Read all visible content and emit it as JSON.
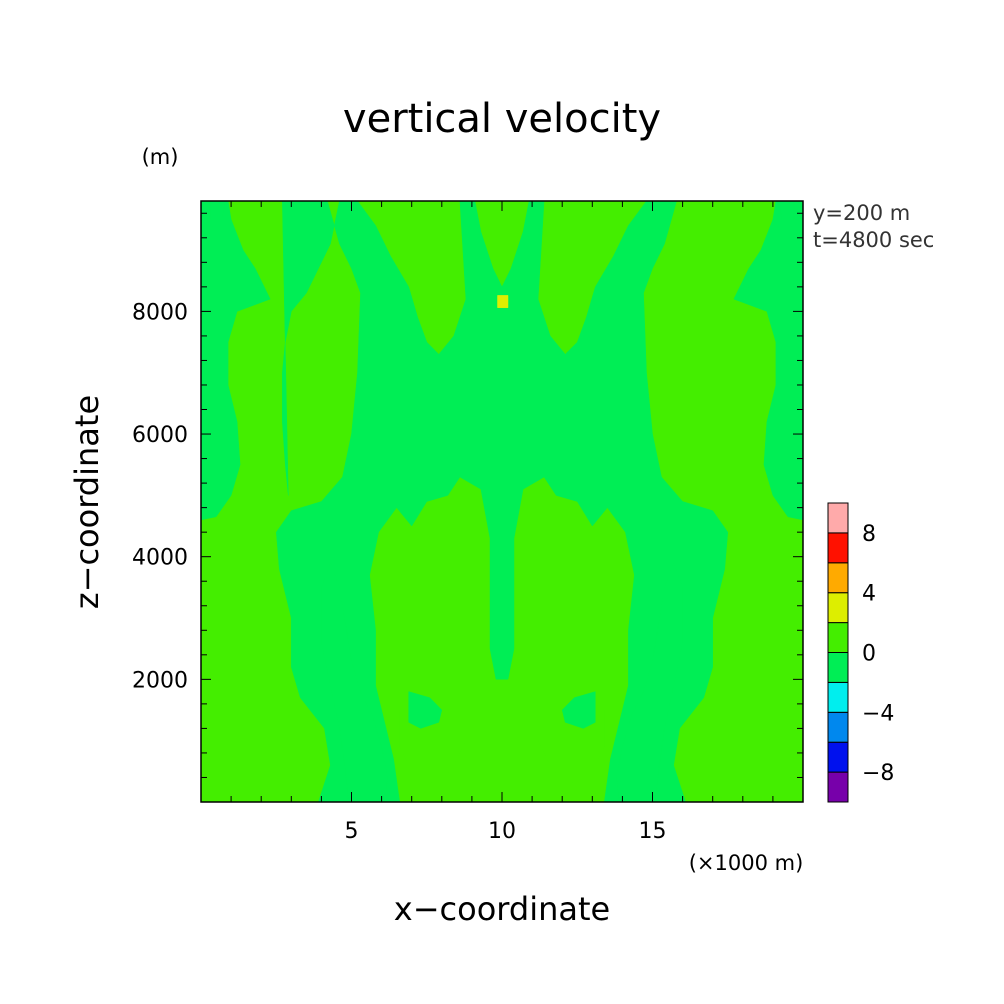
{
  "chart_data": {
    "type": "heatmap",
    "title": "vertical velocity",
    "xlabel": "x−coordinate",
    "ylabel": "z−coordinate",
    "x_unit": "(×1000 m)",
    "y_unit": "(m)",
    "xlim": [
      0,
      20
    ],
    "ylim": [
      0,
      9800
    ],
    "x_ticks": [
      5,
      10,
      15
    ],
    "x_tick_labels": [
      "5",
      "10",
      "15"
    ],
    "y_ticks": [
      2000,
      4000,
      6000,
      8000
    ],
    "y_tick_labels": [
      "2000",
      "4000",
      "6000",
      "8000"
    ],
    "annotations": [
      "y=200 m",
      "t=4800 sec"
    ],
    "colorbar": {
      "levels": [
        -10,
        -8,
        -6,
        -4,
        -2,
        0,
        2,
        4,
        6,
        8,
        10
      ],
      "colors": [
        "#7700aa",
        "#0011ee",
        "#0088ee",
        "#00eeee",
        "#00ee55",
        "#44ee00",
        "#ddee00",
        "#ffaa00",
        "#ff1100",
        "#ffaaaa"
      ],
      "tick_values": [
        -8,
        -4,
        0,
        4,
        8
      ],
      "tick_labels": [
        "−8",
        "−4",
        "0",
        "4",
        "8"
      ]
    },
    "regions": [
      {
        "level": "0 to 2",
        "color": "#44ee00",
        "polygon": [
          [
            0,
            0
          ],
          [
            20,
            0
          ],
          [
            20,
            9800
          ],
          [
            0,
            9800
          ]
        ]
      },
      {
        "level": "-2 to 0",
        "color": "#00ee55",
        "polygon": [
          [
            0,
            9800
          ],
          [
            0.9,
            9800
          ],
          [
            1.0,
            9500
          ],
          [
            1.4,
            9000
          ],
          [
            1.8,
            8700
          ],
          [
            2.3,
            8200
          ],
          [
            1.2,
            8000
          ],
          [
            0.9,
            7500
          ],
          [
            0.9,
            6800
          ],
          [
            1.2,
            6200
          ],
          [
            1.3,
            5500
          ],
          [
            1.0,
            5000
          ],
          [
            0.5,
            4650
          ],
          [
            0,
            4600
          ]
        ]
      },
      {
        "level": "-2 to 0",
        "color": "#00ee55",
        "polygon": [
          [
            20,
            9800
          ],
          [
            19.1,
            9800
          ],
          [
            19.0,
            9500
          ],
          [
            18.6,
            9000
          ],
          [
            18.2,
            8700
          ],
          [
            17.7,
            8200
          ],
          [
            18.8,
            8000
          ],
          [
            19.1,
            7500
          ],
          [
            19.1,
            6800
          ],
          [
            18.8,
            6200
          ],
          [
            18.7,
            5500
          ],
          [
            19.0,
            5000
          ],
          [
            19.5,
            4650
          ],
          [
            20,
            4600
          ]
        ]
      },
      {
        "level": "-2 to 0",
        "color": "#00ee55",
        "polygon": [
          [
            0.3,
            9800
          ],
          [
            0.8,
            9800
          ],
          [
            0.7,
            9500
          ],
          [
            0.4,
            9350
          ],
          [
            0.3,
            9500
          ]
        ]
      },
      {
        "level": "-2 to 0",
        "color": "#00ee55",
        "polygon": [
          [
            19.7,
            9800
          ],
          [
            19.2,
            9800
          ],
          [
            19.3,
            9500
          ],
          [
            19.6,
            9350
          ],
          [
            19.7,
            9500
          ]
        ]
      },
      {
        "level": "-2 to 0",
        "color": "#00ee55",
        "polygon": [
          [
            2.7,
            9800
          ],
          [
            4.2,
            9800
          ],
          [
            4.6,
            9100
          ],
          [
            5.0,
            8700
          ],
          [
            5.3,
            8300
          ],
          [
            5.2,
            7000
          ],
          [
            5.0,
            6000
          ],
          [
            4.7,
            5300
          ],
          [
            4.0,
            4900
          ],
          [
            3.0,
            4750
          ],
          [
            2.5,
            4400
          ],
          [
            2.6,
            3800
          ],
          [
            3.0,
            3000
          ],
          [
            3.0,
            2200
          ],
          [
            3.3,
            1700
          ],
          [
            4.1,
            1200
          ],
          [
            4.3,
            600
          ],
          [
            3.9,
            0
          ],
          [
            6.6,
            0
          ],
          [
            6.4,
            700
          ],
          [
            6.1,
            1300
          ],
          [
            5.8,
            1900
          ],
          [
            5.8,
            2800
          ],
          [
            5.6,
            3700
          ],
          [
            5.9,
            4400
          ],
          [
            6.5,
            4800
          ],
          [
            7.0,
            4500
          ],
          [
            7.5,
            4900
          ],
          [
            8.2,
            5000
          ],
          [
            8.6,
            5300
          ],
          [
            9.3,
            5100
          ],
          [
            9.6,
            4300
          ],
          [
            9.6,
            3300
          ],
          [
            9.6,
            2500
          ],
          [
            9.8,
            2000
          ],
          [
            10.2,
            2000
          ],
          [
            10.4,
            2500
          ],
          [
            10.4,
            3300
          ],
          [
            10.4,
            4300
          ],
          [
            10.7,
            5100
          ],
          [
            11.4,
            5300
          ],
          [
            11.8,
            5000
          ],
          [
            12.5,
            4900
          ],
          [
            13.0,
            4500
          ],
          [
            13.5,
            4800
          ],
          [
            14.1,
            4400
          ],
          [
            14.4,
            3700
          ],
          [
            14.2,
            2800
          ],
          [
            14.2,
            1900
          ],
          [
            13.9,
            1300
          ],
          [
            13.6,
            700
          ],
          [
            13.4,
            0
          ],
          [
            16.1,
            0
          ],
          [
            15.7,
            600
          ],
          [
            15.9,
            1200
          ],
          [
            16.7,
            1700
          ],
          [
            17.0,
            2200
          ],
          [
            17.0,
            3000
          ],
          [
            17.4,
            3800
          ],
          [
            17.5,
            4400
          ],
          [
            17.0,
            4750
          ],
          [
            16.0,
            4900
          ],
          [
            15.3,
            5300
          ],
          [
            15.0,
            6000
          ],
          [
            14.8,
            7000
          ],
          [
            14.7,
            8300
          ],
          [
            15.0,
            8700
          ],
          [
            15.4,
            9100
          ],
          [
            15.8,
            9800
          ],
          [
            14.8,
            9800
          ],
          [
            14.2,
            9400
          ],
          [
            13.7,
            8900
          ],
          [
            13.1,
            8400
          ],
          [
            12.8,
            7900
          ],
          [
            12.5,
            7500
          ],
          [
            12.1,
            7300
          ],
          [
            11.6,
            7600
          ],
          [
            11.2,
            8200
          ],
          [
            11.3,
            9000
          ],
          [
            11.4,
            9800
          ],
          [
            10.9,
            9800
          ],
          [
            10.7,
            9300
          ],
          [
            10.3,
            8700
          ],
          [
            10.0,
            8400
          ],
          [
            9.7,
            8700
          ],
          [
            9.3,
            9300
          ],
          [
            9.1,
            9800
          ],
          [
            8.6,
            9800
          ],
          [
            8.7,
            9000
          ],
          [
            8.8,
            8200
          ],
          [
            8.4,
            7600
          ],
          [
            7.9,
            7300
          ],
          [
            7.5,
            7500
          ],
          [
            7.2,
            7900
          ],
          [
            6.9,
            8400
          ],
          [
            6.3,
            8900
          ],
          [
            5.8,
            9400
          ],
          [
            5.2,
            9800
          ],
          [
            4.6,
            9800
          ],
          [
            4.3,
            9100
          ],
          [
            3.9,
            8700
          ],
          [
            3.5,
            8300
          ],
          [
            3.0,
            8000
          ],
          [
            2.8,
            7500
          ],
          [
            2.7,
            7000
          ],
          [
            2.7,
            6200
          ],
          [
            2.8,
            5500
          ],
          [
            2.9,
            5000
          ]
        ]
      },
      {
        "level": "-2 to 0",
        "color": "#00ee55",
        "polygon": [
          [
            4.9,
            0
          ],
          [
            6.1,
            0
          ],
          [
            6.2,
            400
          ],
          [
            6.0,
            900
          ],
          [
            5.7,
            1400
          ],
          [
            5.3,
            1800
          ],
          [
            5.0,
            2300
          ],
          [
            4.8,
            2900
          ],
          [
            4.6,
            3500
          ],
          [
            4.3,
            3900
          ],
          [
            4.0,
            3500
          ],
          [
            4.0,
            2600
          ],
          [
            4.3,
            1900
          ],
          [
            4.6,
            1200
          ],
          [
            4.8,
            500
          ]
        ]
      },
      {
        "level": "-2 to 0",
        "color": "#00ee55",
        "polygon": [
          [
            15.1,
            0
          ],
          [
            13.9,
            0
          ],
          [
            13.8,
            400
          ],
          [
            14.0,
            900
          ],
          [
            14.3,
            1400
          ],
          [
            14.7,
            1800
          ],
          [
            15.0,
            2300
          ],
          [
            15.2,
            2900
          ],
          [
            15.4,
            3500
          ],
          [
            15.7,
            3900
          ],
          [
            16.0,
            3500
          ],
          [
            16.0,
            2600
          ],
          [
            15.7,
            1900
          ],
          [
            15.4,
            1200
          ],
          [
            15.2,
            500
          ]
        ]
      },
      {
        "level": "0 to 2",
        "color": "#44ee00",
        "polygon": [
          [
            6.9,
            2100
          ],
          [
            7.3,
            2100
          ],
          [
            7.9,
            2000
          ],
          [
            8.6,
            1500
          ],
          [
            8.8,
            1000
          ],
          [
            8.3,
            500
          ],
          [
            7.6,
            300
          ],
          [
            7.0,
            500
          ],
          [
            6.6,
            900
          ],
          [
            6.6,
            1500
          ]
        ]
      },
      {
        "level": "0 to 2",
        "color": "#44ee00",
        "polygon": [
          [
            13.1,
            2100
          ],
          [
            12.7,
            2100
          ],
          [
            12.1,
            2000
          ],
          [
            11.4,
            1500
          ],
          [
            11.2,
            1000
          ],
          [
            11.7,
            500
          ],
          [
            12.4,
            300
          ],
          [
            13.0,
            500
          ],
          [
            13.4,
            900
          ],
          [
            13.4,
            1500
          ]
        ]
      },
      {
        "level": "-2 to 0",
        "color": "#00ee55",
        "polygon": [
          [
            6.9,
            1800
          ],
          [
            7.6,
            1700
          ],
          [
            8.0,
            1500
          ],
          [
            7.9,
            1300
          ],
          [
            7.3,
            1200
          ],
          [
            6.9,
            1300
          ]
        ]
      },
      {
        "level": "-2 to 0",
        "color": "#00ee55",
        "polygon": [
          [
            13.1,
            1800
          ],
          [
            12.4,
            1700
          ],
          [
            12.0,
            1500
          ],
          [
            12.1,
            1300
          ],
          [
            12.7,
            1200
          ],
          [
            13.1,
            1300
          ]
        ]
      },
      {
        "level": "2 to 4",
        "color": "#ddee00",
        "polygon": [
          [
            9.85,
            8060
          ],
          [
            10.2,
            8060
          ],
          [
            10.2,
            8260
          ],
          [
            9.85,
            8260
          ]
        ]
      }
    ]
  }
}
